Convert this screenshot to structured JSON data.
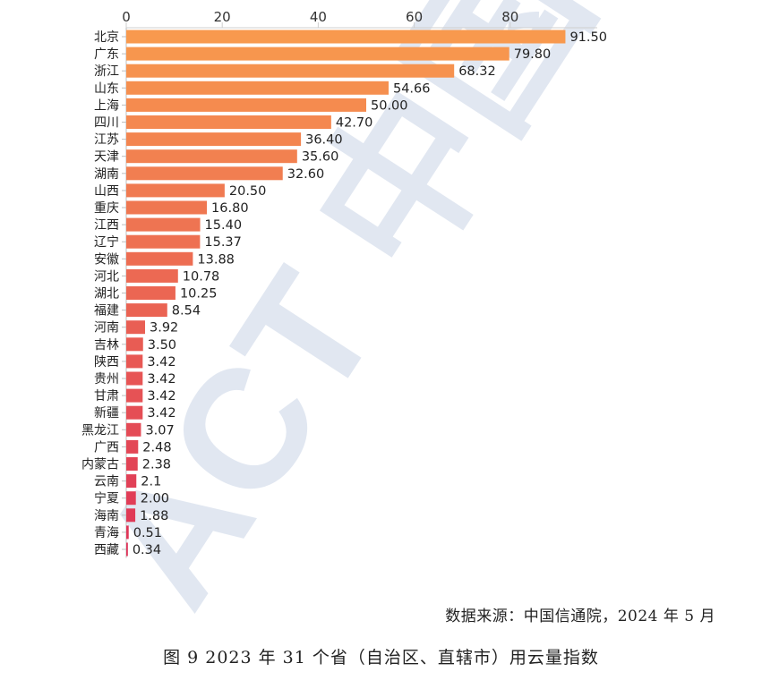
{
  "chart_data": {
    "type": "bar",
    "orientation": "horizontal",
    "categories": [
      "北京",
      "广东",
      "浙江",
      "山东",
      "上海",
      "四川",
      "江苏",
      "天津",
      "湖南",
      "山西",
      "重庆",
      "江西",
      "辽宁",
      "安徽",
      "河北",
      "湖北",
      "福建",
      "河南",
      "吉林",
      "陕西",
      "贵州",
      "甘肃",
      "新疆",
      "黑龙江",
      "广西",
      "内蒙古",
      "云南",
      "宁夏",
      "海南",
      "青海",
      "西藏"
    ],
    "values": [
      91.5,
      79.8,
      68.32,
      54.66,
      50.0,
      42.7,
      36.4,
      35.6,
      32.6,
      20.5,
      16.8,
      15.4,
      15.37,
      13.88,
      10.78,
      10.25,
      8.54,
      3.92,
      3.5,
      3.42,
      3.42,
      3.42,
      3.42,
      3.07,
      2.48,
      2.38,
      2.1,
      2.0,
      1.88,
      0.51,
      0.34
    ],
    "value_labels": [
      "91.50",
      "79.80",
      "68.32",
      "54.66",
      "50.00",
      "42.70",
      "36.40",
      "35.60",
      "32.60",
      "20.50",
      "16.80",
      "15.40",
      "15.37",
      "13.88",
      "10.78",
      "10.25",
      "8.54",
      "3.92",
      "3.50",
      "3.42",
      "3.42",
      "3.42",
      "3.42",
      "3.07",
      "2.48",
      "2.38",
      "2.1",
      "2.00",
      "1.88",
      "0.51",
      "0.34"
    ],
    "x_ticks": [
      "0",
      "20",
      "40",
      "60",
      "80"
    ],
    "xlim": [
      0,
      100
    ],
    "axis_position": "top",
    "grid": false,
    "legend": "none",
    "colors": {
      "bar_top": "#f8994e",
      "bar_bottom": "#de3358"
    }
  },
  "source_text": "数据来源：中国信通院，2024 年 5 月",
  "caption": "图 9 2023 年 31 个省（自治区、直辖市）用云量指数",
  "watermark": {
    "text": "ACT 中国信",
    "color": "#c8d3e6"
  }
}
